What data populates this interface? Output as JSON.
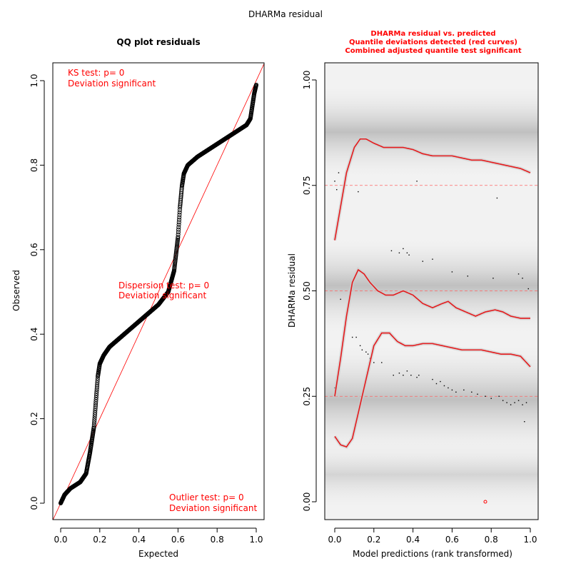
{
  "figure_title": "DHARMa residual",
  "chart_data": [
    {
      "type": "scatter",
      "title": "QQ plot residuals",
      "xlabel": "Expected",
      "ylabel": "Observed",
      "xlim": [
        0,
        1
      ],
      "ylim": [
        0,
        1
      ],
      "x_ticks": [
        "0.0",
        "0.2",
        "0.4",
        "0.6",
        "0.8",
        "1.0"
      ],
      "y_ticks": [
        "0.0",
        "0.2",
        "0.4",
        "0.6",
        "0.8",
        "1.0"
      ],
      "reference_line": {
        "x": [
          0,
          1
        ],
        "y": [
          0,
          1
        ],
        "color": "#ff0000"
      },
      "series": [
        {
          "x": [
            0.0,
            0.02,
            0.05,
            0.1,
            0.13,
            0.15,
            0.17,
            0.18,
            0.19,
            0.2,
            0.22,
            0.25,
            0.3,
            0.35,
            0.4,
            0.45,
            0.5,
            0.55,
            0.58,
            0.6,
            0.61,
            0.62,
            0.63,
            0.65,
            0.7,
            0.75,
            0.8,
            0.85,
            0.9,
            0.95,
            0.97,
            0.98,
            0.99,
            1.0
          ],
          "y": [
            0.0,
            0.02,
            0.035,
            0.05,
            0.07,
            0.12,
            0.18,
            0.24,
            0.3,
            0.33,
            0.35,
            0.37,
            0.39,
            0.41,
            0.43,
            0.45,
            0.47,
            0.5,
            0.55,
            0.63,
            0.7,
            0.75,
            0.78,
            0.8,
            0.82,
            0.835,
            0.85,
            0.865,
            0.88,
            0.895,
            0.91,
            0.94,
            0.97,
            0.99
          ],
          "color": "#000000"
        }
      ],
      "annotations": [
        {
          "lines": [
            "KS test: p= 0",
            "Deviation  significant"
          ],
          "color": "#ff0000"
        },
        {
          "lines": [
            "Dispersion test: p= 0",
            "Deviation  significant"
          ],
          "color": "#ff0000"
        },
        {
          "lines": [
            "Outlier test: p= 0",
            "Deviation  significant"
          ],
          "color": "#ff0000"
        }
      ]
    },
    {
      "type": "line",
      "title_lines": [
        "DHARMa residual vs. predicted",
        "Quantile deviations detected (red curves)",
        "Combined adjusted quantile test significant"
      ],
      "title_color": "#ff0000",
      "xlabel": "Model predictions (rank transformed)",
      "ylabel": "DHARMa residual",
      "xlim": [
        0,
        1
      ],
      "ylim": [
        0,
        1
      ],
      "x_ticks": [
        "0.0",
        "0.2",
        "0.4",
        "0.6",
        "0.8",
        "1.0"
      ],
      "y_ticks": [
        "0.00",
        "0.25",
        "0.50",
        "0.75",
        "1.00"
      ],
      "reference_lines": [
        0.25,
        0.5,
        0.75
      ],
      "background": "gray density shading",
      "series": [
        {
          "name": "0.75 quantile",
          "x": [
            0.0,
            0.03,
            0.06,
            0.1,
            0.13,
            0.16,
            0.2,
            0.25,
            0.3,
            0.35,
            0.4,
            0.45,
            0.5,
            0.55,
            0.6,
            0.65,
            0.7,
            0.75,
            0.8,
            0.85,
            0.9,
            0.95,
            1.0
          ],
          "y": [
            0.62,
            0.7,
            0.78,
            0.84,
            0.86,
            0.86,
            0.85,
            0.84,
            0.84,
            0.84,
            0.835,
            0.825,
            0.82,
            0.82,
            0.82,
            0.815,
            0.81,
            0.81,
            0.805,
            0.8,
            0.795,
            0.79,
            0.78
          ]
        },
        {
          "name": "0.5 quantile",
          "x": [
            0.0,
            0.03,
            0.06,
            0.09,
            0.12,
            0.15,
            0.18,
            0.22,
            0.26,
            0.3,
            0.35,
            0.4,
            0.45,
            0.5,
            0.55,
            0.58,
            0.62,
            0.67,
            0.72,
            0.77,
            0.82,
            0.86,
            0.9,
            0.95,
            1.0
          ],
          "y": [
            0.25,
            0.34,
            0.44,
            0.52,
            0.55,
            0.54,
            0.52,
            0.5,
            0.49,
            0.49,
            0.5,
            0.49,
            0.47,
            0.46,
            0.47,
            0.475,
            0.46,
            0.45,
            0.44,
            0.45,
            0.455,
            0.45,
            0.44,
            0.435,
            0.435
          ]
        },
        {
          "name": "0.25 quantile",
          "x": [
            0.0,
            0.03,
            0.06,
            0.09,
            0.12,
            0.16,
            0.2,
            0.24,
            0.28,
            0.32,
            0.36,
            0.4,
            0.45,
            0.5,
            0.55,
            0.6,
            0.65,
            0.7,
            0.75,
            0.8,
            0.85,
            0.9,
            0.95,
            1.0
          ],
          "y": [
            0.155,
            0.135,
            0.13,
            0.15,
            0.21,
            0.29,
            0.37,
            0.4,
            0.4,
            0.38,
            0.37,
            0.37,
            0.375,
            0.375,
            0.37,
            0.365,
            0.36,
            0.36,
            0.36,
            0.355,
            0.35,
            0.35,
            0.345,
            0.32
          ]
        }
      ],
      "points": [
        {
          "x": 0.0,
          "y": 0.76
        },
        {
          "x": 0.01,
          "y": 0.74
        },
        {
          "x": 0.02,
          "y": 0.78
        },
        {
          "x": 0.12,
          "y": 0.735
        },
        {
          "x": 0.42,
          "y": 0.76
        },
        {
          "x": 0.83,
          "y": 0.72
        },
        {
          "x": 0.29,
          "y": 0.595
        },
        {
          "x": 0.33,
          "y": 0.59
        },
        {
          "x": 0.35,
          "y": 0.6
        },
        {
          "x": 0.37,
          "y": 0.59
        },
        {
          "x": 0.38,
          "y": 0.585
        },
        {
          "x": 0.45,
          "y": 0.57
        },
        {
          "x": 0.5,
          "y": 0.575
        },
        {
          "x": 0.6,
          "y": 0.545
        },
        {
          "x": 0.68,
          "y": 0.535
        },
        {
          "x": 0.81,
          "y": 0.53
        },
        {
          "x": 0.94,
          "y": 0.54
        },
        {
          "x": 0.96,
          "y": 0.53
        },
        {
          "x": 0.99,
          "y": 0.505
        },
        {
          "x": 0.03,
          "y": 0.48
        },
        {
          "x": 0.09,
          "y": 0.39
        },
        {
          "x": 0.11,
          "y": 0.39
        },
        {
          "x": 0.13,
          "y": 0.37
        },
        {
          "x": 0.14,
          "y": 0.36
        },
        {
          "x": 0.16,
          "y": 0.355
        },
        {
          "x": 0.17,
          "y": 0.35
        },
        {
          "x": 0.18,
          "y": 0.34
        },
        {
          "x": 0.2,
          "y": 0.33
        },
        {
          "x": 0.24,
          "y": 0.33
        },
        {
          "x": 0.3,
          "y": 0.3
        },
        {
          "x": 0.33,
          "y": 0.305
        },
        {
          "x": 0.35,
          "y": 0.3
        },
        {
          "x": 0.37,
          "y": 0.31
        },
        {
          "x": 0.39,
          "y": 0.3
        },
        {
          "x": 0.42,
          "y": 0.295
        },
        {
          "x": 0.43,
          "y": 0.3
        },
        {
          "x": 0.5,
          "y": 0.29
        },
        {
          "x": 0.52,
          "y": 0.28
        },
        {
          "x": 0.54,
          "y": 0.285
        },
        {
          "x": 0.56,
          "y": 0.275
        },
        {
          "x": 0.58,
          "y": 0.27
        },
        {
          "x": 0.6,
          "y": 0.265
        },
        {
          "x": 0.62,
          "y": 0.26
        },
        {
          "x": 0.66,
          "y": 0.265
        },
        {
          "x": 0.7,
          "y": 0.26
        },
        {
          "x": 0.73,
          "y": 0.255
        },
        {
          "x": 0.77,
          "y": 0.25
        },
        {
          "x": 0.8,
          "y": 0.245
        },
        {
          "x": 0.84,
          "y": 0.25
        },
        {
          "x": 0.86,
          "y": 0.24
        },
        {
          "x": 0.88,
          "y": 0.235
        },
        {
          "x": 0.9,
          "y": 0.23
        },
        {
          "x": 0.92,
          "y": 0.235
        },
        {
          "x": 0.94,
          "y": 0.24
        },
        {
          "x": 0.96,
          "y": 0.23
        },
        {
          "x": 0.98,
          "y": 0.235
        },
        {
          "x": 0.0,
          "y": 0.27
        },
        {
          "x": 0.01,
          "y": 0.28
        },
        {
          "x": 0.97,
          "y": 0.19
        }
      ],
      "outliers": [
        {
          "x": 0.77,
          "y": 0.0
        }
      ]
    }
  ]
}
